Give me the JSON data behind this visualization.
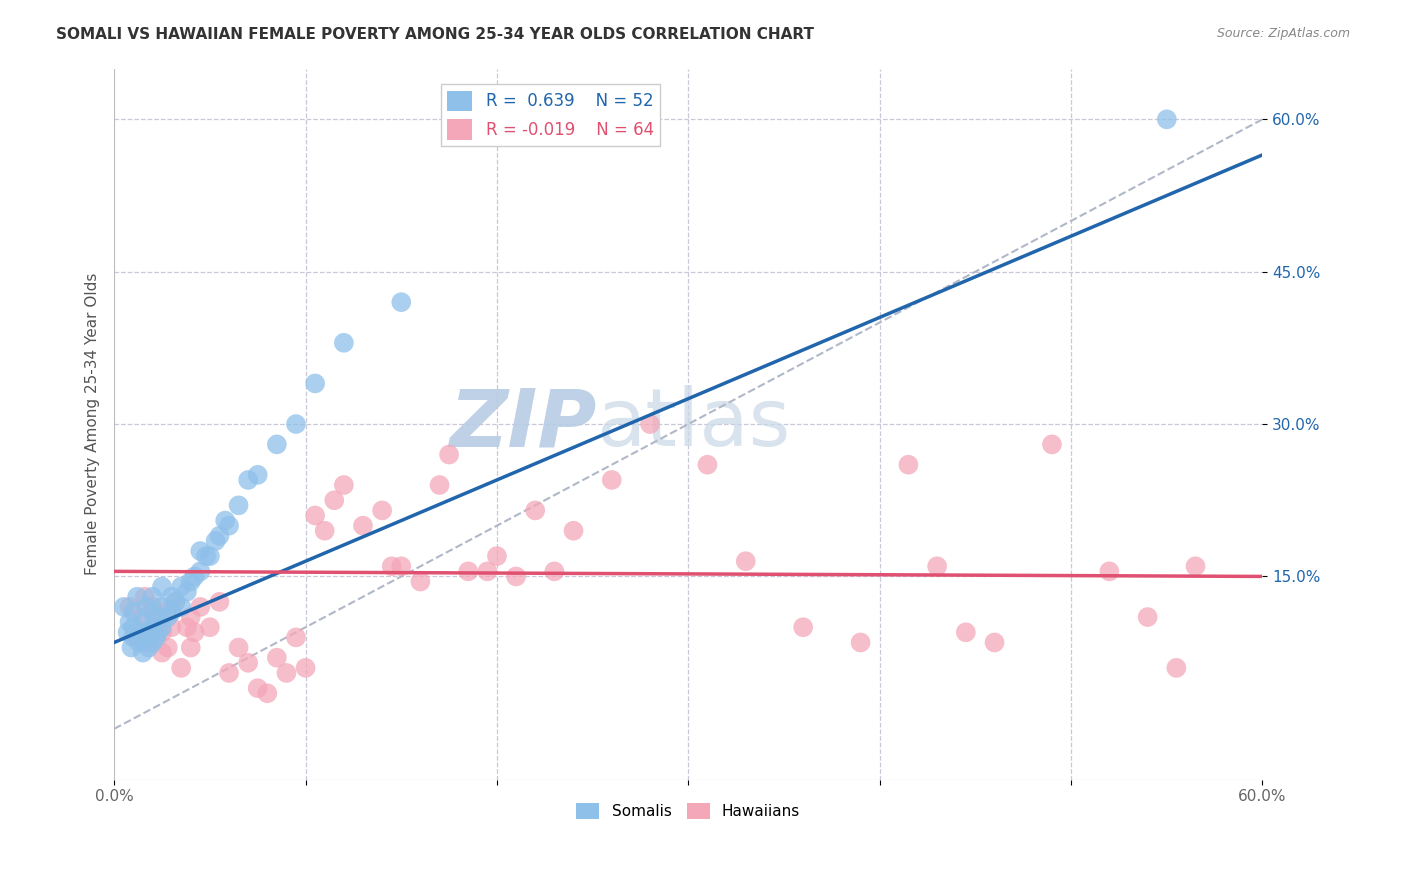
{
  "title": "SOMALI VS HAWAIIAN FEMALE POVERTY AMONG 25-34 YEAR OLDS CORRELATION CHART",
  "source": "Source: ZipAtlas.com",
  "ylabel": "Female Poverty Among 25-34 Year Olds",
  "xlim": [
    0.0,
    0.6
  ],
  "ylim": [
    -0.05,
    0.65
  ],
  "yticks_right": [
    0.15,
    0.3,
    0.45,
    0.6
  ],
  "yticklabels_right": [
    "15.0%",
    "30.0%",
    "45.0%",
    "60.0%"
  ],
  "somali_R": 0.639,
  "somali_N": 52,
  "hawaiian_R": -0.019,
  "hawaiian_N": 64,
  "somali_color": "#8ec0ea",
  "hawaiian_color": "#f4a7b9",
  "somali_line_color": "#2166ac",
  "hawaiian_line_color": "#e05070",
  "diagonal_color": "#b0b8c8",
  "background_color": "#ffffff",
  "grid_color": "#c8c8d8",
  "watermark_color": "#c8d8ee",
  "somali_line_x0": 0.0,
  "somali_line_y0": 0.085,
  "somali_line_x1": 0.6,
  "somali_line_y1": 0.565,
  "hawaiian_line_x0": 0.0,
  "hawaiian_line_x1": 0.6,
  "hawaiian_line_y0": 0.155,
  "hawaiian_line_y1": 0.15,
  "somali_x": [
    0.005,
    0.007,
    0.008,
    0.009,
    0.01,
    0.01,
    0.01,
    0.012,
    0.013,
    0.014,
    0.015,
    0.015,
    0.015,
    0.017,
    0.018,
    0.018,
    0.02,
    0.02,
    0.02,
    0.02,
    0.022,
    0.022,
    0.023,
    0.025,
    0.025,
    0.025,
    0.028,
    0.03,
    0.03,
    0.032,
    0.035,
    0.035,
    0.038,
    0.04,
    0.042,
    0.045,
    0.045,
    0.048,
    0.05,
    0.053,
    0.055,
    0.058,
    0.06,
    0.065,
    0.07,
    0.075,
    0.085,
    0.095,
    0.105,
    0.12,
    0.15,
    0.55
  ],
  "somali_y": [
    0.12,
    0.095,
    0.105,
    0.08,
    0.09,
    0.1,
    0.115,
    0.13,
    0.085,
    0.095,
    0.075,
    0.09,
    0.105,
    0.12,
    0.08,
    0.095,
    0.085,
    0.1,
    0.115,
    0.13,
    0.09,
    0.11,
    0.095,
    0.1,
    0.12,
    0.14,
    0.11,
    0.115,
    0.13,
    0.125,
    0.12,
    0.14,
    0.135,
    0.145,
    0.15,
    0.155,
    0.175,
    0.17,
    0.17,
    0.185,
    0.19,
    0.205,
    0.2,
    0.22,
    0.245,
    0.25,
    0.28,
    0.3,
    0.34,
    0.38,
    0.42,
    0.6
  ],
  "hawaiian_x": [
    0.008,
    0.012,
    0.015,
    0.016,
    0.018,
    0.02,
    0.02,
    0.022,
    0.025,
    0.025,
    0.025,
    0.028,
    0.03,
    0.032,
    0.035,
    0.038,
    0.04,
    0.04,
    0.042,
    0.045,
    0.05,
    0.055,
    0.06,
    0.065,
    0.07,
    0.075,
    0.08,
    0.085,
    0.09,
    0.095,
    0.1,
    0.105,
    0.11,
    0.115,
    0.12,
    0.13,
    0.14,
    0.145,
    0.15,
    0.16,
    0.17,
    0.175,
    0.185,
    0.195,
    0.2,
    0.21,
    0.22,
    0.23,
    0.24,
    0.26,
    0.28,
    0.31,
    0.33,
    0.36,
    0.39,
    0.415,
    0.43,
    0.445,
    0.46,
    0.49,
    0.52,
    0.54,
    0.555,
    0.565
  ],
  "hawaiian_y": [
    0.12,
    0.09,
    0.11,
    0.13,
    0.085,
    0.095,
    0.12,
    0.105,
    0.075,
    0.095,
    0.115,
    0.08,
    0.1,
    0.125,
    0.06,
    0.1,
    0.08,
    0.11,
    0.095,
    0.12,
    0.1,
    0.125,
    0.055,
    0.08,
    0.065,
    0.04,
    0.035,
    0.07,
    0.055,
    0.09,
    0.06,
    0.21,
    0.195,
    0.225,
    0.24,
    0.2,
    0.215,
    0.16,
    0.16,
    0.145,
    0.24,
    0.27,
    0.155,
    0.155,
    0.17,
    0.15,
    0.215,
    0.155,
    0.195,
    0.245,
    0.3,
    0.26,
    0.165,
    0.1,
    0.085,
    0.26,
    0.16,
    0.095,
    0.085,
    0.28,
    0.155,
    0.11,
    0.06,
    0.16
  ]
}
